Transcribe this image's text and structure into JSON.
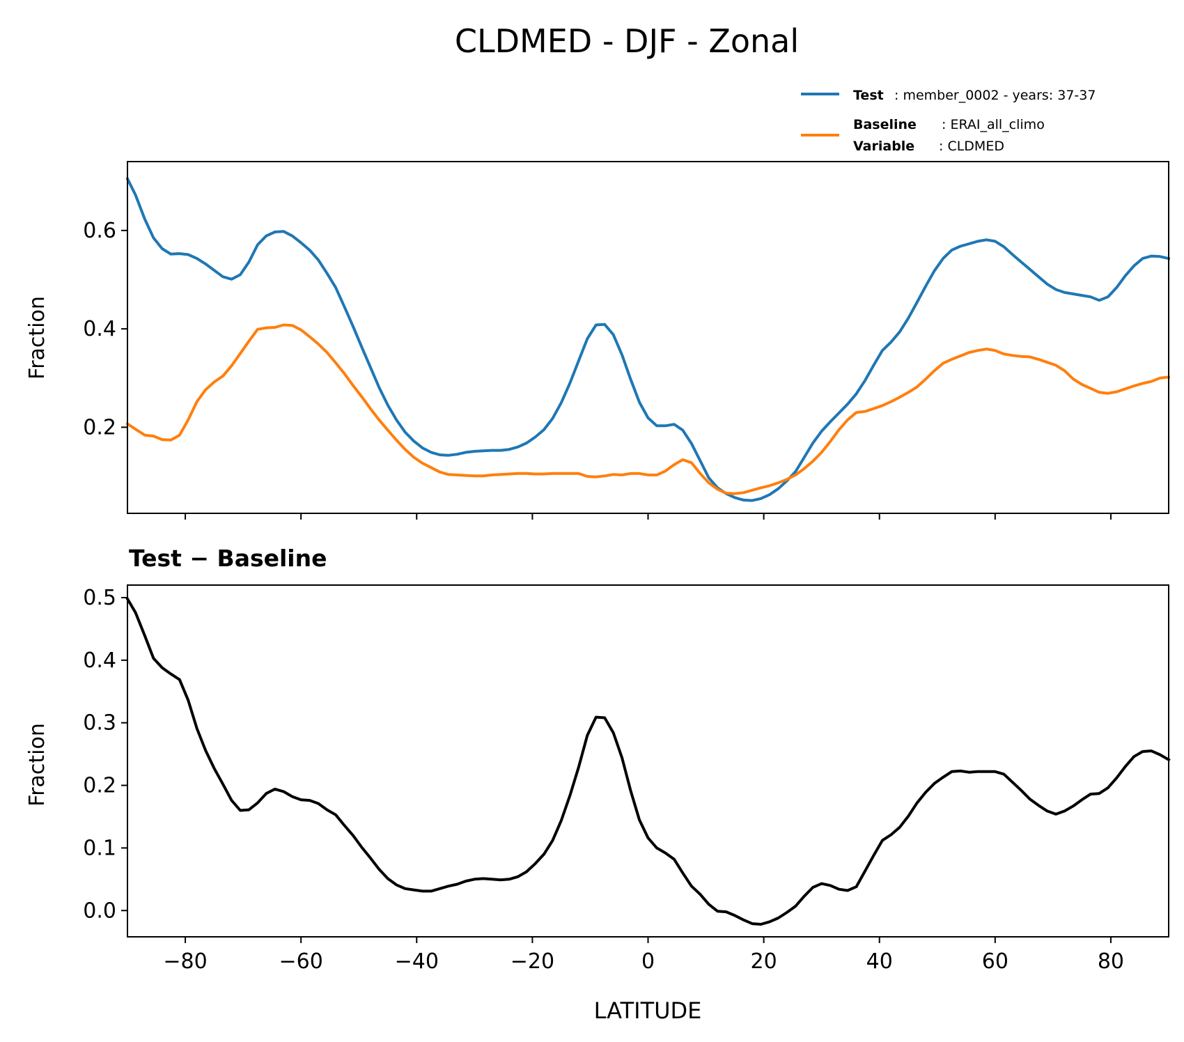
{
  "title": "CLDMED - DJF - Zonal",
  "legend": {
    "test_key": "Test",
    "test_text": ": member_0002 - years: 37-37",
    "baseline_key": "Baseline",
    "baseline_text": ": ERAI_all_climo",
    "variable_key": "Variable",
    "variable_text": ": CLDMED"
  },
  "colors": {
    "test": "#1f77b4",
    "baseline": "#ff7f0e",
    "diff": "#000000"
  },
  "chart_data": [
    {
      "type": "line",
      "title": "",
      "xlabel": "",
      "ylabel": "Fraction",
      "xlim": [
        -90,
        90
      ],
      "ylim": [
        0.025,
        0.74
      ],
      "yticks": [
        0.2,
        0.4,
        0.6
      ],
      "ytick_labels": [
        "0.2",
        "0.4",
        "0.6"
      ],
      "xticks": [
        -80,
        -60,
        -40,
        -20,
        0,
        20,
        40,
        60,
        80
      ],
      "show_xtick_labels": false,
      "series": [
        {
          "name": "Test",
          "color": "#1f77b4",
          "x": [
            -90,
            -88.6,
            -87,
            -85.5,
            -84,
            -82.5,
            -81,
            -79.5,
            -78,
            -76.5,
            -75,
            -73.5,
            -72,
            -70.5,
            -69,
            -67.5,
            -66,
            -64.5,
            -63,
            -61.5,
            -60,
            -58.5,
            -57,
            -55.5,
            -54,
            -52.5,
            -51,
            -49.5,
            -48,
            -46.5,
            -45,
            -43.5,
            -42,
            -40.5,
            -39,
            -37.5,
            -36,
            -34.5,
            -33,
            -31.5,
            -30,
            -28.5,
            -27,
            -25.5,
            -24,
            -22.5,
            -21,
            -19.5,
            -18,
            -16.5,
            -15,
            -13.5,
            -12,
            -10.5,
            -9,
            -7.5,
            -6,
            -4.5,
            -3,
            -1.5,
            0,
            1.5,
            3,
            4.5,
            6,
            7.5,
            9,
            10.5,
            12,
            13.5,
            15,
            16.5,
            18,
            19.5,
            21,
            22.5,
            24,
            25.5,
            27,
            28.5,
            30,
            31.5,
            33,
            34.5,
            36,
            37.5,
            39,
            40.5,
            42,
            43.5,
            45,
            46.5,
            48,
            49.5,
            51,
            52.5,
            54,
            55.5,
            57,
            58.5,
            60,
            61.5,
            63,
            64.5,
            66,
            67.5,
            69,
            70.5,
            72,
            73.5,
            75,
            76.5,
            78,
            79.5,
            81,
            82.5,
            84,
            85.5,
            87,
            88.5,
            90
          ],
          "values": [
            0.705,
            0.672,
            0.623,
            0.585,
            0.563,
            0.552,
            0.553,
            0.551,
            0.543,
            0.532,
            0.519,
            0.506,
            0.501,
            0.51,
            0.536,
            0.571,
            0.589,
            0.597,
            0.598,
            0.589,
            0.575,
            0.56,
            0.54,
            0.513,
            0.484,
            0.445,
            0.405,
            0.363,
            0.322,
            0.281,
            0.245,
            0.215,
            0.19,
            0.172,
            0.158,
            0.149,
            0.144,
            0.143,
            0.145,
            0.149,
            0.151,
            0.152,
            0.153,
            0.153,
            0.155,
            0.16,
            0.168,
            0.18,
            0.195,
            0.218,
            0.25,
            0.29,
            0.335,
            0.38,
            0.408,
            0.409,
            0.388,
            0.347,
            0.297,
            0.251,
            0.219,
            0.203,
            0.203,
            0.206,
            0.194,
            0.167,
            0.132,
            0.097,
            0.077,
            0.065,
            0.057,
            0.052,
            0.051,
            0.055,
            0.063,
            0.075,
            0.091,
            0.11,
            0.139,
            0.168,
            0.192,
            0.211,
            0.229,
            0.247,
            0.268,
            0.295,
            0.326,
            0.356,
            0.373,
            0.394,
            0.422,
            0.454,
            0.487,
            0.518,
            0.543,
            0.56,
            0.568,
            0.573,
            0.578,
            0.581,
            0.578,
            0.567,
            0.551,
            0.536,
            0.521,
            0.506,
            0.491,
            0.48,
            0.474,
            0.471,
            0.468,
            0.465,
            0.458,
            0.465,
            0.484,
            0.508,
            0.528,
            0.543,
            0.548,
            0.547,
            0.543
          ]
        },
        {
          "name": "Baseline",
          "color": "#ff7f0e",
          "x": [
            -90,
            -88.6,
            -87,
            -85.5,
            -84,
            -82.5,
            -81,
            -79.5,
            -78,
            -76.5,
            -75,
            -73.5,
            -72,
            -70.5,
            -69,
            -67.5,
            -66,
            -64.5,
            -63,
            -61.5,
            -60,
            -58.5,
            -57,
            -55.5,
            -54,
            -52.5,
            -51,
            -49.5,
            -48,
            -46.5,
            -45,
            -43.5,
            -42,
            -40.5,
            -39,
            -37.5,
            -36,
            -34.5,
            -33,
            -31.5,
            -30,
            -28.5,
            -27,
            -25.5,
            -24,
            -22.5,
            -21,
            -19.5,
            -18,
            -16.5,
            -15,
            -13.5,
            -12,
            -10.5,
            -9,
            -7.5,
            -6,
            -4.5,
            -3,
            -1.5,
            0,
            1.5,
            3,
            4.5,
            6,
            7.5,
            9,
            10.5,
            12,
            13.5,
            15,
            16.5,
            18,
            19.5,
            21,
            22.5,
            24,
            25.5,
            27,
            28.5,
            30,
            31.5,
            33,
            34.5,
            36,
            37.5,
            39,
            40.5,
            42,
            43.5,
            45,
            46.5,
            48,
            49.5,
            51,
            52.5,
            54,
            55.5,
            57,
            58.5,
            60,
            61.5,
            63,
            64.5,
            66,
            67.5,
            69,
            70.5,
            72,
            73.5,
            75,
            76.5,
            78,
            79.5,
            81,
            82.5,
            84,
            85.5,
            87,
            88.5,
            90
          ],
          "values": [
            0.207,
            0.196,
            0.184,
            0.182,
            0.175,
            0.174,
            0.184,
            0.215,
            0.252,
            0.276,
            0.292,
            0.304,
            0.325,
            0.35,
            0.375,
            0.399,
            0.402,
            0.403,
            0.408,
            0.407,
            0.398,
            0.384,
            0.369,
            0.352,
            0.331,
            0.309,
            0.285,
            0.262,
            0.238,
            0.215,
            0.194,
            0.174,
            0.155,
            0.139,
            0.127,
            0.118,
            0.109,
            0.104,
            0.103,
            0.102,
            0.101,
            0.101,
            0.103,
            0.104,
            0.105,
            0.106,
            0.106,
            0.105,
            0.105,
            0.106,
            0.106,
            0.106,
            0.106,
            0.1,
            0.099,
            0.101,
            0.104,
            0.103,
            0.106,
            0.106,
            0.103,
            0.103,
            0.111,
            0.124,
            0.134,
            0.128,
            0.106,
            0.087,
            0.074,
            0.066,
            0.065,
            0.067,
            0.072,
            0.077,
            0.081,
            0.087,
            0.094,
            0.103,
            0.116,
            0.131,
            0.149,
            0.171,
            0.195,
            0.215,
            0.23,
            0.232,
            0.238,
            0.244,
            0.252,
            0.261,
            0.271,
            0.282,
            0.298,
            0.315,
            0.33,
            0.338,
            0.345,
            0.352,
            0.356,
            0.359,
            0.356,
            0.349,
            0.346,
            0.344,
            0.343,
            0.338,
            0.332,
            0.326,
            0.315,
            0.298,
            0.287,
            0.279,
            0.271,
            0.269,
            0.272,
            0.278,
            0.284,
            0.289,
            0.293,
            0.3,
            0.302
          ]
        }
      ]
    },
    {
      "type": "line",
      "title": "Test − Baseline",
      "xlabel": "LATITUDE",
      "ylabel": "Fraction",
      "xlim": [
        -90,
        90
      ],
      "ylim": [
        -0.042,
        0.52
      ],
      "yticks": [
        0.0,
        0.1,
        0.2,
        0.3,
        0.4,
        0.5
      ],
      "ytick_labels": [
        "0.0",
        "0.1",
        "0.2",
        "0.3",
        "0.4",
        "0.5"
      ],
      "xticks": [
        -80,
        -60,
        -40,
        -20,
        0,
        20,
        40,
        60,
        80
      ],
      "xtick_labels": [
        "−80",
        "−60",
        "−40",
        "−20",
        "0",
        "20",
        "40",
        "60",
        "80"
      ],
      "show_xtick_labels": true,
      "series": [
        {
          "name": "Test − Baseline",
          "color": "#000000",
          "x": [
            -90,
            -88.6,
            -87,
            -85.5,
            -84,
            -82.5,
            -81,
            -79.5,
            -78,
            -76.5,
            -75,
            -73.5,
            -72,
            -70.5,
            -69,
            -67.5,
            -66,
            -64.5,
            -63,
            -61.5,
            -60,
            -58.5,
            -57,
            -55.5,
            -54,
            -52.5,
            -51,
            -49.5,
            -48,
            -46.5,
            -45,
            -43.5,
            -42,
            -40.5,
            -39,
            -37.5,
            -36,
            -34.5,
            -33,
            -31.5,
            -30,
            -28.5,
            -27,
            -25.5,
            -24,
            -22.5,
            -21,
            -19.5,
            -18,
            -16.5,
            -15,
            -13.5,
            -12,
            -10.5,
            -9,
            -7.5,
            -6,
            -4.5,
            -3,
            -1.5,
            0,
            1.5,
            3,
            4.5,
            6,
            7.5,
            9,
            10.5,
            12,
            13.5,
            15,
            16.5,
            18,
            19.5,
            21,
            22.5,
            24,
            25.5,
            27,
            28.5,
            30,
            31.5,
            33,
            34.5,
            36,
            37.5,
            39,
            40.5,
            42,
            43.5,
            45,
            46.5,
            48,
            49.5,
            51,
            52.5,
            54,
            55.5,
            57,
            58.5,
            60,
            61.5,
            63,
            64.5,
            66,
            67.5,
            69,
            70.5,
            72,
            73.5,
            75,
            76.5,
            78,
            79.5,
            81,
            82.5,
            84,
            85.5,
            87,
            88.5,
            90
          ],
          "values": [
            0.498,
            0.476,
            0.439,
            0.403,
            0.388,
            0.378,
            0.369,
            0.336,
            0.291,
            0.256,
            0.227,
            0.202,
            0.176,
            0.16,
            0.161,
            0.172,
            0.187,
            0.194,
            0.19,
            0.182,
            0.177,
            0.176,
            0.171,
            0.161,
            0.153,
            0.136,
            0.12,
            0.101,
            0.084,
            0.066,
            0.051,
            0.041,
            0.035,
            0.033,
            0.031,
            0.031,
            0.035,
            0.039,
            0.042,
            0.047,
            0.05,
            0.051,
            0.05,
            0.049,
            0.05,
            0.054,
            0.062,
            0.075,
            0.09,
            0.112,
            0.144,
            0.184,
            0.229,
            0.28,
            0.309,
            0.308,
            0.284,
            0.244,
            0.191,
            0.145,
            0.116,
            0.1,
            0.092,
            0.082,
            0.06,
            0.039,
            0.026,
            0.01,
            -0.001,
            -0.002,
            -0.008,
            -0.015,
            -0.021,
            -0.022,
            -0.018,
            -0.012,
            -0.003,
            0.007,
            0.023,
            0.037,
            0.043,
            0.04,
            0.034,
            0.032,
            0.038,
            0.063,
            0.088,
            0.112,
            0.121,
            0.133,
            0.151,
            0.172,
            0.189,
            0.203,
            0.213,
            0.222,
            0.223,
            0.221,
            0.222,
            0.222,
            0.222,
            0.218,
            0.205,
            0.192,
            0.178,
            0.168,
            0.159,
            0.154,
            0.159,
            0.167,
            0.177,
            0.186,
            0.187,
            0.196,
            0.212,
            0.23,
            0.246,
            0.254,
            0.255,
            0.249,
            0.241
          ]
        }
      ]
    }
  ]
}
